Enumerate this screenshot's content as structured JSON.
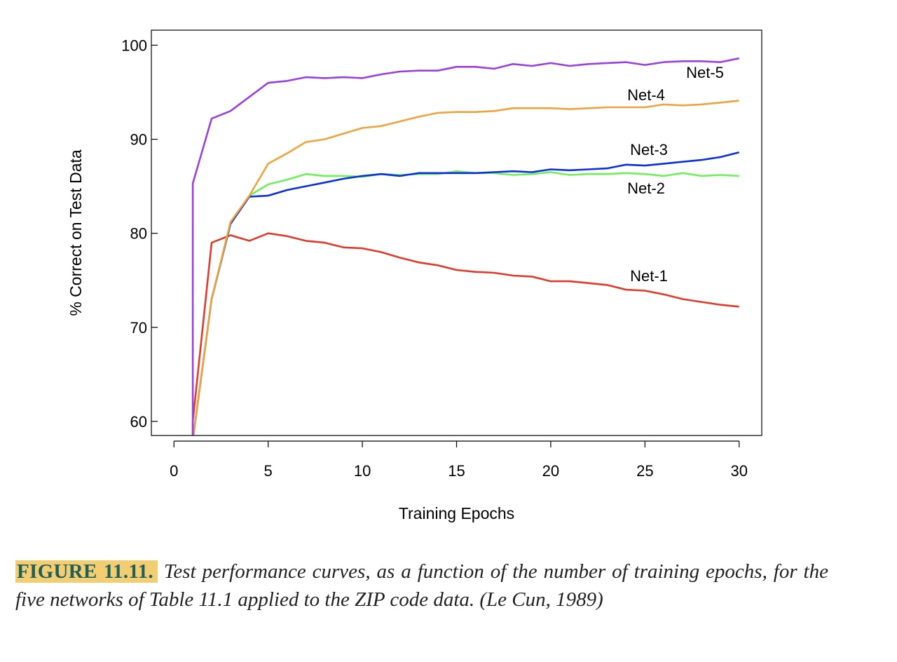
{
  "chart_data": {
    "type": "line",
    "xlabel": "Training Epochs",
    "ylabel": "% Correct on Test Data",
    "xlim": [
      -1.2,
      31.2
    ],
    "ylim": [
      58.5,
      101.6
    ],
    "xticks": [
      0,
      5,
      10,
      15,
      20,
      25,
      30
    ],
    "yticks": [
      60,
      70,
      80,
      90,
      100
    ],
    "grid": false,
    "x": [
      1,
      2,
      3,
      4,
      5,
      6,
      7,
      8,
      9,
      10,
      11,
      12,
      13,
      14,
      15,
      16,
      17,
      18,
      19,
      20,
      21,
      22,
      23,
      24,
      25,
      26,
      27,
      28,
      29,
      30
    ],
    "series": [
      {
        "name": "Net-1",
        "color": "#e23a2a",
        "values": [
          60.0,
          79.0,
          79.8,
          79.2,
          80.0,
          79.7,
          79.2,
          79.0,
          78.5,
          78.4,
          78.0,
          77.4,
          76.9,
          76.6,
          76.1,
          75.9,
          75.8,
          75.5,
          75.4,
          74.9,
          74.9,
          74.7,
          74.5,
          74.0,
          73.9,
          73.5,
          73.0,
          72.7,
          72.4,
          72.2
        ]
      },
      {
        "name": "Net-2",
        "color": "#6ef05a",
        "values": [
          58.0,
          73.0,
          81.0,
          84.0,
          85.2,
          85.7,
          86.3,
          86.1,
          86.1,
          86.0,
          86.3,
          86.2,
          86.3,
          86.3,
          86.6,
          86.4,
          86.4,
          86.2,
          86.3,
          86.5,
          86.2,
          86.3,
          86.3,
          86.4,
          86.3,
          86.1,
          86.4,
          86.1,
          86.2,
          86.1
        ]
      },
      {
        "name": "Net-3",
        "color": "#0a2ee0",
        "values": [
          58.0,
          73.0,
          81.0,
          83.9,
          84.0,
          84.6,
          85.0,
          85.4,
          85.8,
          86.1,
          86.3,
          86.1,
          86.4,
          86.4,
          86.4,
          86.4,
          86.5,
          86.6,
          86.5,
          86.8,
          86.7,
          86.8,
          86.9,
          87.3,
          87.2,
          87.4,
          87.6,
          87.8,
          88.1,
          88.6
        ]
      },
      {
        "name": "Net-4",
        "color": "#f0a23c",
        "values": [
          58.0,
          73.0,
          81.2,
          84.0,
          87.4,
          88.5,
          89.7,
          90.0,
          90.6,
          91.2,
          91.4,
          91.9,
          92.4,
          92.8,
          92.9,
          92.9,
          93.0,
          93.3,
          93.3,
          93.3,
          93.2,
          93.3,
          93.4,
          93.4,
          93.4,
          93.7,
          93.6,
          93.7,
          93.9,
          94.1
        ]
      },
      {
        "name": "Net-5",
        "color": "#9a3fe0",
        "values": [
          85.3,
          92.2,
          93.0,
          94.5,
          96.0,
          96.2,
          96.6,
          96.5,
          96.6,
          96.5,
          96.9,
          97.2,
          97.3,
          97.3,
          97.7,
          97.7,
          97.5,
          98.0,
          97.8,
          98.1,
          97.8,
          98.0,
          98.1,
          98.2,
          97.9,
          98.2,
          98.3,
          98.3,
          98.2,
          98.6
        ]
      }
    ]
  },
  "caption": {
    "label": "FIGURE 11.11.",
    "text": "Test performance curves, as a function of the number of training epochs, for the five networks of Table 11.1 applied to the ZIP code data. (Le Cun, 1989)"
  }
}
